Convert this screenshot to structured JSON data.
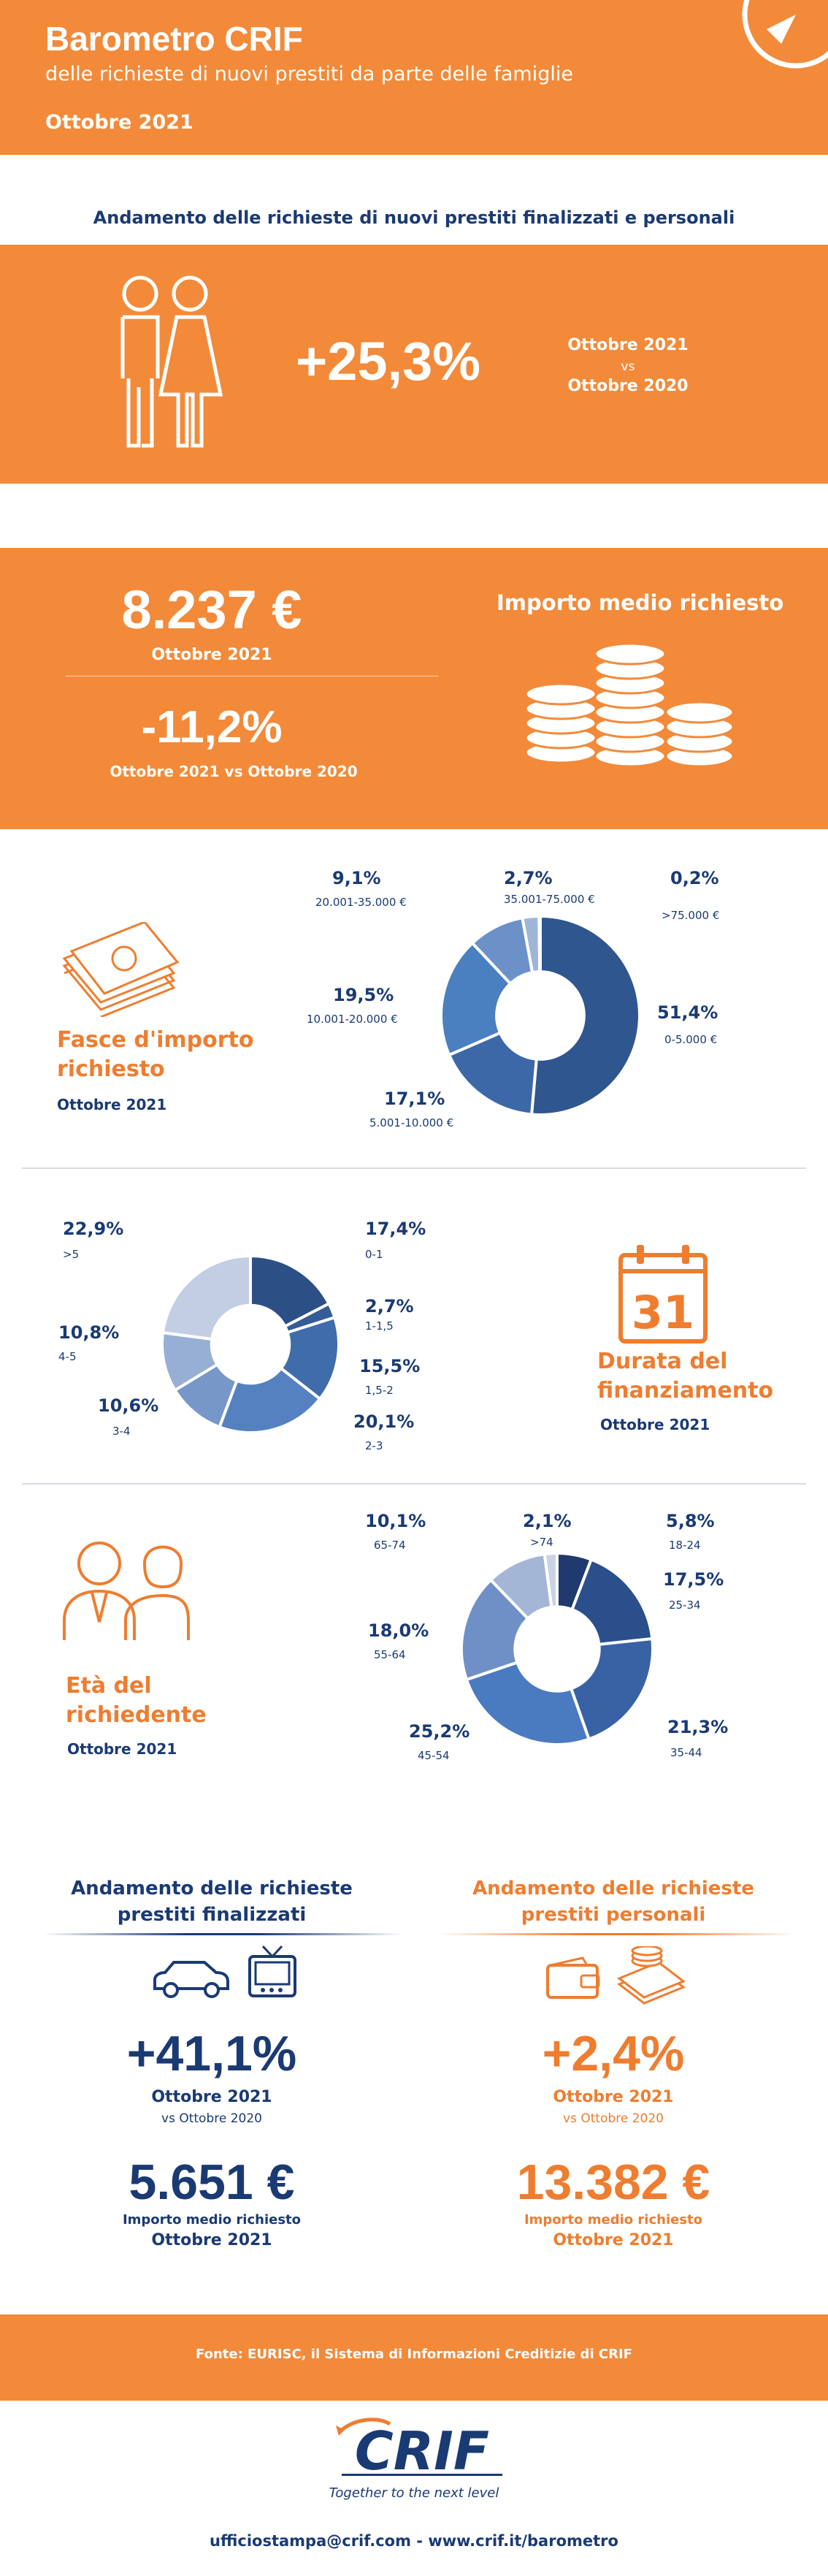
{
  "header": {
    "title": "Barometro CRIF",
    "subtitle": "delle richieste di nuovi prestiti da parte delle famiglie",
    "date": "Ottobre 2021"
  },
  "trend": {
    "heading": "Andamento delle richieste di nuovi prestiti finalizzati e personali",
    "value": "+25,3%",
    "compare_line1": "Ottobre 2021",
    "compare_vs": "vs",
    "compare_line2": "Ottobre 2020"
  },
  "average_amount": {
    "value": "8.237 €",
    "period": "Ottobre 2021",
    "change": "-11,2%",
    "change_period": "Ottobre 2021 vs Ottobre 2020",
    "label": "Importo medio richiesto"
  },
  "amount_ranges": {
    "title_line1": "Fasce d'importo",
    "title_line2": "richiesto",
    "period": "Ottobre 2021",
    "slices": [
      {
        "pct": "51,4%",
        "range": "0-5.000 €",
        "value": 51.4,
        "color": "#2f568f"
      },
      {
        "pct": "17,1%",
        "range": "5.001-10.000  €",
        "value": 17.1,
        "color": "#3c68a8"
      },
      {
        "pct": "19,5%",
        "range": "10.001-20.000 €",
        "value": 19.5,
        "color": "#4a7fc0"
      },
      {
        "pct": "9,1%",
        "range": "20.001-35.000 €",
        "value": 9.1,
        "color": "#6b91c8"
      },
      {
        "pct": "2,7%",
        "range": "35.001-75.000 €",
        "value": 2.7,
        "color": "#9fb5d6"
      },
      {
        "pct": "0,2%",
        "range": ">75.000 €",
        "value": 0.2,
        "color": "#c9d4e6"
      }
    ]
  },
  "duration": {
    "title_line1": "Durata del",
    "title_line2": "finanziamento",
    "period": "Ottobre 2021",
    "calendar_number": "31",
    "slices": [
      {
        "pct": "17,4%",
        "range": "0-1",
        "value": 17.4,
        "color": "#2c4f86"
      },
      {
        "pct": "2,7%",
        "range": "1-1,5",
        "value": 2.7,
        "color": "#345c98"
      },
      {
        "pct": "15,5%",
        "range": "1,5-2",
        "value": 15.5,
        "color": "#3f6cab"
      },
      {
        "pct": "20,1%",
        "range": "2-3",
        "value": 20.1,
        "color": "#5581c0"
      },
      {
        "pct": "10,6%",
        "range": "3-4",
        "value": 10.6,
        "color": "#7797c8"
      },
      {
        "pct": "10,8%",
        "range": "4-5",
        "value": 10.8,
        "color": "#97afd4"
      },
      {
        "pct": "22,9%",
        "range": ">5",
        "value": 22.9,
        "color": "#c2cee3"
      }
    ]
  },
  "age": {
    "title_line1": "Età del",
    "title_line2": "richiedente",
    "period": "Ottobre 2021",
    "slices": [
      {
        "pct": "5,8%",
        "range": "18-24",
        "value": 5.8,
        "color": "#1e3a6e"
      },
      {
        "pct": "17,5%",
        "range": "25-34",
        "value": 17.5,
        "color": "#2a4f8b"
      },
      {
        "pct": "21,3%",
        "range": "35-44",
        "value": 21.3,
        "color": "#3862a3"
      },
      {
        "pct": "25,2%",
        "range": "45-54",
        "value": 25.2,
        "color": "#4a7ac0"
      },
      {
        "pct": "18,0%",
        "range": "55-64",
        "value": 18.0,
        "color": "#6f90c6"
      },
      {
        "pct": "10,1%",
        "range": "65-74",
        "value": 10.1,
        "color": "#a3b6d6"
      },
      {
        "pct": "2,1%",
        "range": ">74",
        "value": 2.1,
        "color": "#c9d3e4"
      }
    ]
  },
  "finalizzati": {
    "heading_line1": "Andamento delle richieste",
    "heading_line2": "prestiti finalizzati",
    "change": "+41,1%",
    "period": "Ottobre 2021",
    "compare": "vs Ottobre 2020",
    "amount": "5.651 €",
    "amount_label": "Importo medio richiesto",
    "amount_period": "Ottobre 2021"
  },
  "personali": {
    "heading_line1": "Andamento delle richieste",
    "heading_line2": "prestiti personali",
    "change": "+2,4%",
    "period": "Ottobre 2021",
    "compare": "vs Ottobre 2020",
    "amount": "13.382 €",
    "amount_label": "Importo medio richiesto",
    "amount_period": "Ottobre 2021"
  },
  "footer": {
    "source": "Fonte: EURISC, il Sistema di Informazioni Creditizie di CRIF",
    "logo_text": "CRIF",
    "tagline": "Together to the next level",
    "contacts": "ufficiostampa@crif.com - www.crif.it/barometro"
  },
  "colors": {
    "orange": "#f28a3a",
    "navy": "#1a3a73",
    "text_orange": "#ee7d30"
  }
}
